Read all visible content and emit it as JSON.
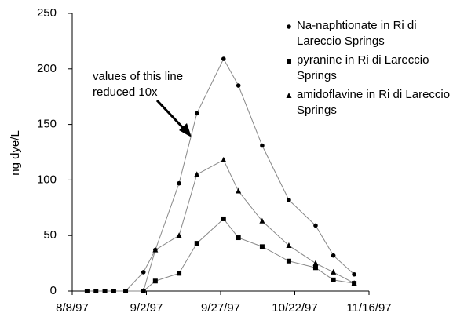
{
  "chart_data": {
    "type": "line",
    "y_label": "ng dye/L",
    "annotation": [
      "values of this line",
      "reduced 10x"
    ],
    "x": [
      "8/13/97",
      "8/16/97",
      "8/19/97",
      "8/22/97",
      "8/26/97",
      "9/1/97",
      "9/5/97",
      "9/13/97",
      "9/19/97",
      "9/28/97",
      "10/3/97",
      "10/11/97",
      "10/20/97",
      "10/29/97",
      "11/4/97",
      "11/11/97"
    ],
    "series": [
      {
        "name": "Na-naphtionate in Ri di Lareccio Springs",
        "marker": "circle",
        "color": "#888888",
        "values": [
          0,
          0,
          0,
          0,
          0,
          17,
          37,
          97,
          160,
          209,
          185,
          131,
          82,
          59,
          32,
          15
        ]
      },
      {
        "name": "pyranine in Ri di Lareccio Springs",
        "marker": "square",
        "color": "#888888",
        "values": [
          0,
          0,
          0,
          0,
          0,
          0,
          9,
          16,
          43,
          65,
          48,
          40,
          27,
          21,
          10,
          7
        ]
      },
      {
        "name": "amidoflavine in Ri di Lareccio Springs",
        "marker": "triangle",
        "color": "#888888",
        "values": [
          null,
          null,
          null,
          null,
          null,
          0,
          37,
          50,
          105,
          118,
          90,
          63,
          41,
          25,
          17,
          7
        ]
      }
    ],
    "xlim": [
      "8/8/97",
      "11/16/97"
    ],
    "xticks": [
      "8/8/97",
      "9/2/97",
      "9/27/97",
      "10/22/97",
      "11/16/97"
    ],
    "ylim": [
      0,
      250
    ],
    "yticks": [
      0,
      50,
      100,
      150,
      200,
      250
    ]
  }
}
